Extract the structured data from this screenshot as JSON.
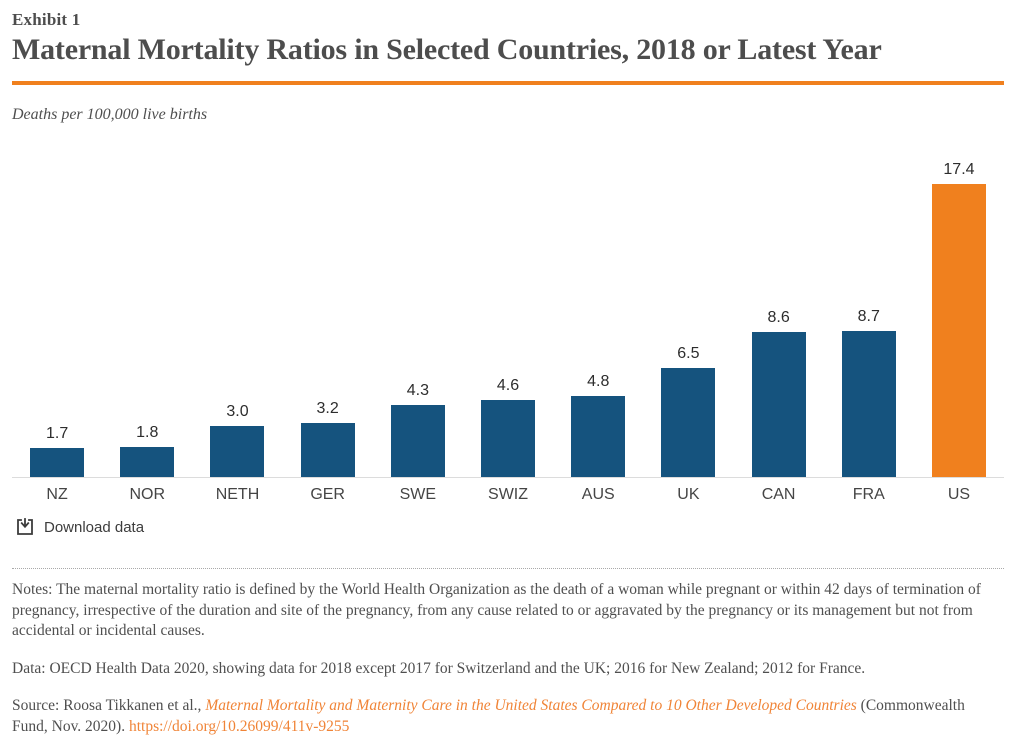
{
  "header": {
    "exhibit": "Exhibit 1",
    "title": "Maternal Mortality Ratios in Selected Countries, 2018 or Latest Year",
    "subtitle": "Deaths per 100,000 live births"
  },
  "chart_data": {
    "type": "bar",
    "title": "Maternal Mortality Ratios in Selected Countries, 2018 or Latest Year",
    "ylabel": "Deaths per 100,000 live births",
    "xlabel": "",
    "categories": [
      "NZ",
      "NOR",
      "NETH",
      "GER",
      "SWE",
      "SWIZ",
      "AUS",
      "UK",
      "CAN",
      "FRA",
      "US"
    ],
    "values": [
      1.7,
      1.8,
      3.0,
      3.2,
      4.3,
      4.6,
      4.8,
      6.5,
      8.6,
      8.7,
      17.4
    ],
    "value_labels": [
      "1.7",
      "1.8",
      "3.0",
      "3.2",
      "4.3",
      "4.6",
      "4.8",
      "6.5",
      "8.6",
      "8.7",
      "17.4"
    ],
    "highlight_category": "US",
    "ylim": [
      0,
      19.6
    ],
    "grid": false,
    "legend": false
  },
  "download": {
    "label": "Download data"
  },
  "notes": "Notes: The maternal mortality ratio is defined by the World Health Organization as the death of a woman while pregnant or within 42 days of termination of pregnancy, irrespective of the duration and site of the pregnancy, from any cause related to or aggravated by the pregnancy or its management but not from accidental or incidental causes.",
  "data_line": "Data: OECD Health Data 2020, showing data for 2018 except 2017 for Switzerland and the UK; 2016 for New Zealand; 2012 for France.",
  "source": {
    "prefix": "Source: Roosa Tikkanen et al., ",
    "link_title": "Maternal Mortality and Maternity Care in the United States Compared to 10 Other Developed Countries",
    "suffix": " (Commonwealth Fund, Nov. 2020). ",
    "doi": "https://doi.org/10.26099/411v-9255"
  },
  "colors": {
    "bar_blue": "#15537E",
    "accent_orange": "#F0801E",
    "link_orange": "#F08437"
  }
}
